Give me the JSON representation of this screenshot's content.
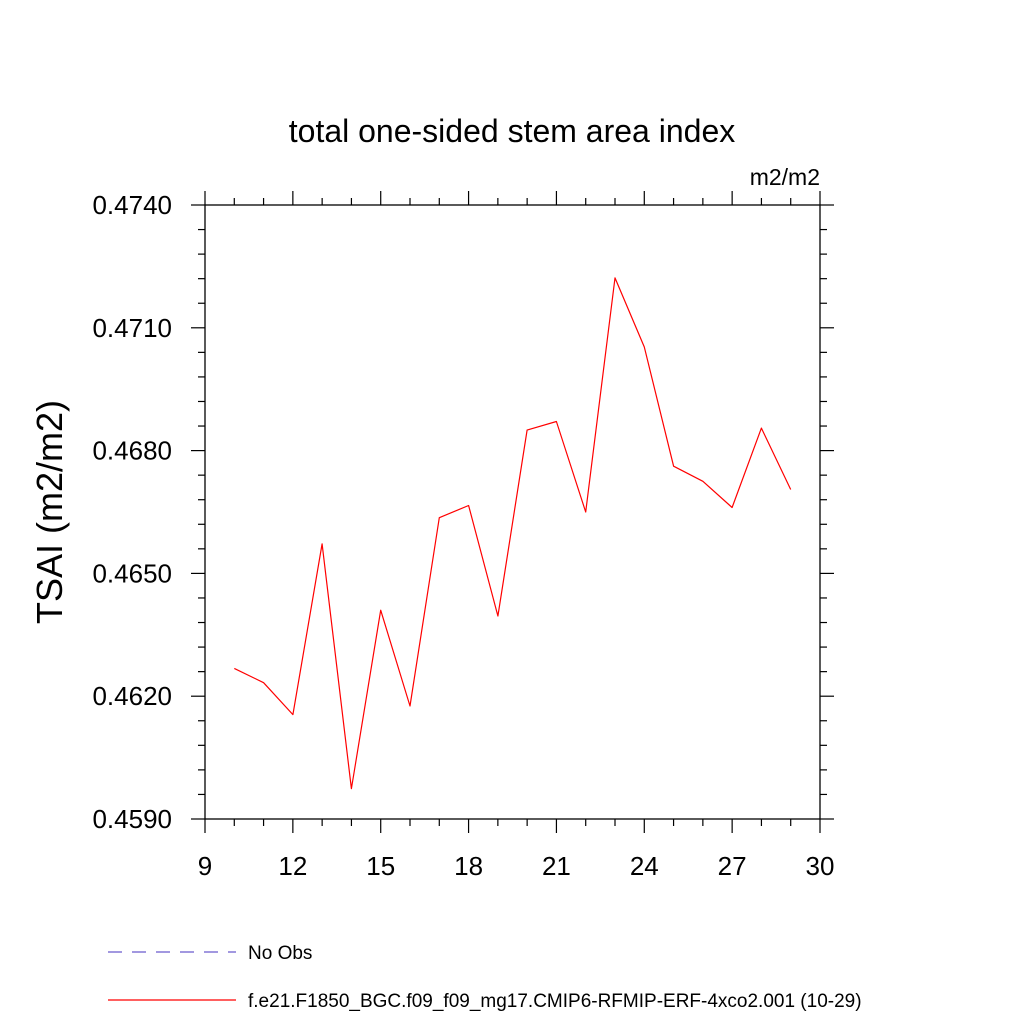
{
  "chart_data": {
    "type": "line",
    "title": "total one-sided stem area index",
    "units": "m2/m2",
    "ylabel": "TSAI  (m2/m2)",
    "xlabel": "",
    "xlim": [
      9,
      30
    ],
    "ylim": [
      0.459,
      0.474
    ],
    "xticks": [
      "9",
      "12",
      "15",
      "18",
      "21",
      "24",
      "27",
      "30"
    ],
    "yticks": [
      "0.4590",
      "0.4620",
      "0.4650",
      "0.4680",
      "0.4710",
      "0.4740"
    ],
    "grid": false,
    "legend_position": "bottom",
    "series": [
      {
        "name": "No Obs",
        "style": "dashed",
        "color": "#6a5acd",
        "x": [],
        "y": []
      },
      {
        "name": "f.e21.F1850_BGC.f09_f09_mg17.CMIP6-RFMIP-ERF-4xco2.001 (10-29)",
        "style": "solid",
        "color": "#ff0000",
        "x": [
          10,
          11,
          12,
          13,
          14,
          15,
          16,
          17,
          18,
          19,
          20,
          21,
          22,
          23,
          24,
          25,
          26,
          27,
          28,
          29
        ],
        "y": [
          0.46268,
          0.46233,
          0.46155,
          0.46572,
          0.45974,
          0.4641,
          0.46176,
          0.46636,
          0.46666,
          0.46396,
          0.4685,
          0.46871,
          0.4665,
          0.47222,
          0.47053,
          0.46762,
          0.46725,
          0.46661,
          0.46855,
          0.46705
        ]
      }
    ]
  }
}
